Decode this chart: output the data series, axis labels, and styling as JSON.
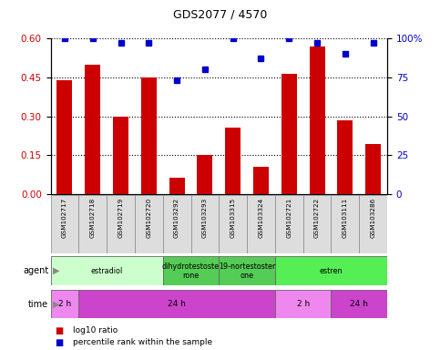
{
  "title": "GDS2077 / 4570",
  "samples": [
    "GSM102717",
    "GSM102718",
    "GSM102719",
    "GSM102720",
    "GSM103292",
    "GSM103293",
    "GSM103315",
    "GSM103324",
    "GSM102721",
    "GSM102722",
    "GSM103111",
    "GSM103286"
  ],
  "log10_ratio": [
    0.44,
    0.5,
    0.3,
    0.45,
    0.065,
    0.15,
    0.255,
    0.105,
    0.465,
    0.57,
    0.285,
    0.195
  ],
  "percentile": [
    100,
    100,
    97,
    97,
    73,
    80,
    100,
    87,
    100,
    97,
    90,
    97
  ],
  "bar_color": "#cc0000",
  "dot_color": "#0000cc",
  "ylim_left": [
    0,
    0.6
  ],
  "ylim_right": [
    0,
    100
  ],
  "yticks_left": [
    0,
    0.15,
    0.3,
    0.45,
    0.6
  ],
  "yticks_right": [
    0,
    25,
    50,
    75,
    100
  ],
  "ytick_labels_right": [
    "0",
    "25",
    "50",
    "75",
    "100%"
  ],
  "agent_labels": [
    {
      "text": "estradiol",
      "start": 0,
      "end": 4,
      "color": "#ccffcc"
    },
    {
      "text": "dihydrotestoste\nrone",
      "start": 4,
      "end": 6,
      "color": "#55cc55"
    },
    {
      "text": "19-nortestoster\none",
      "start": 6,
      "end": 8,
      "color": "#55cc55"
    },
    {
      "text": "estren",
      "start": 8,
      "end": 12,
      "color": "#55ee55"
    }
  ],
  "time_labels": [
    {
      "text": "2 h",
      "start": 0,
      "end": 1,
      "color": "#ee88ee"
    },
    {
      "text": "24 h",
      "start": 1,
      "end": 8,
      "color": "#cc44cc"
    },
    {
      "text": "2 h",
      "start": 8,
      "end": 10,
      "color": "#ee88ee"
    },
    {
      "text": "24 h",
      "start": 10,
      "end": 12,
      "color": "#cc44cc"
    }
  ],
  "left_color": "#cc0000",
  "right_color": "#0000cc",
  "bg_color": "#ffffff",
  "sample_bg": "#dddddd",
  "bar_width": 0.55,
  "dot_size": 5,
  "grid_yticks": [
    0.15,
    0.3,
    0.45,
    0.6
  ]
}
